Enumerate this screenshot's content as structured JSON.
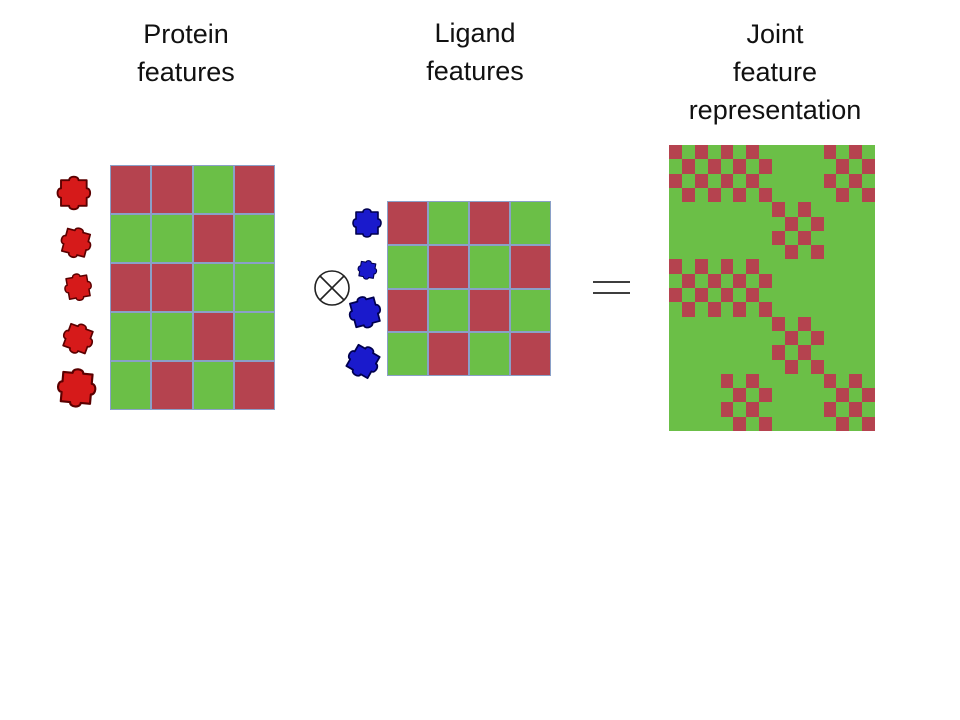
{
  "titles": {
    "protein": [
      "Protein",
      "features"
    ],
    "ligand": [
      "Ligand",
      "features"
    ],
    "joint": [
      "Joint",
      "feature",
      "representation"
    ]
  },
  "colors": {
    "red": "#b5434f",
    "green": "#6bbf47",
    "protein_piece": "#d61a1a",
    "ligand_piece": "#1a1acc"
  },
  "protein_matrix": [
    [
      1,
      1,
      0,
      1
    ],
    [
      0,
      0,
      1,
      0
    ],
    [
      1,
      1,
      0,
      0
    ],
    [
      0,
      0,
      1,
      0
    ],
    [
      0,
      1,
      0,
      1
    ]
  ],
  "ligand_matrix": [
    [
      1,
      0,
      1,
      0
    ],
    [
      0,
      1,
      0,
      1
    ],
    [
      1,
      0,
      1,
      0
    ],
    [
      0,
      1,
      0,
      1
    ]
  ],
  "icons": {
    "protein_pieces": [
      "puzzle-piece-icon",
      "puzzle-piece-icon",
      "puzzle-piece-icon",
      "puzzle-piece-icon",
      "puzzle-piece-icon"
    ],
    "ligand_pieces": [
      "puzzle-piece-icon",
      "puzzle-piece-icon",
      "puzzle-piece-icon",
      "puzzle-piece-icon"
    ],
    "operator": "tensor-product-icon",
    "equals": "equals-icon"
  }
}
